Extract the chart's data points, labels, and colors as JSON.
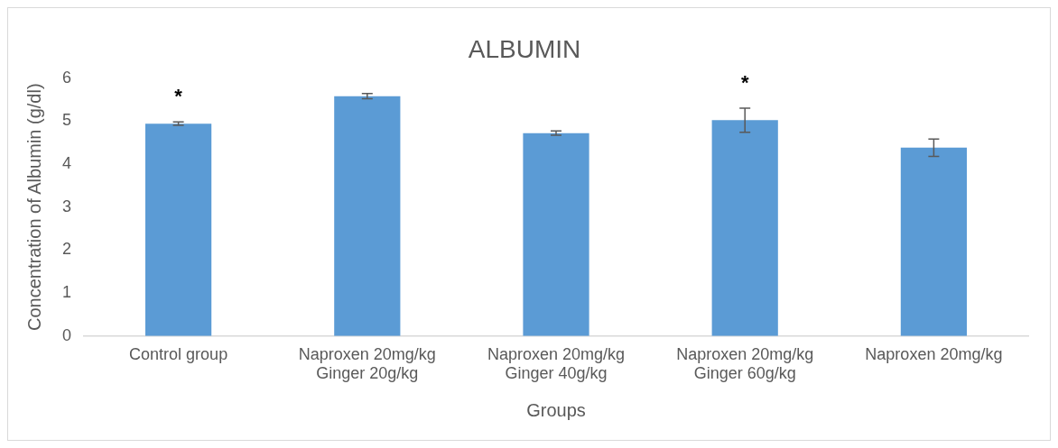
{
  "chart_data": {
    "type": "bar",
    "title": "ALBUMIN",
    "xlabel": "Groups",
    "ylabel": "Concentration of Albumin (g/dl)",
    "categories": [
      "Control group",
      "Naproxen 20mg/kg\nGinger 20g/kg",
      "Naproxen 20mg/kg\nGinger 40g/kg",
      "Naproxen 20mg/kg\nGinger 60g/kg",
      "Naproxen 20mg/kg"
    ],
    "values": [
      4.94,
      5.58,
      4.72,
      5.02,
      4.38
    ],
    "errors": [
      0.04,
      0.06,
      0.05,
      0.28,
      0.2
    ],
    "color": "#5b9bd5",
    "ylim": [
      0,
      6
    ],
    "yticks": [
      0,
      1,
      2,
      3,
      4,
      5,
      6
    ],
    "grid": false,
    "annotations": [
      "*",
      "*"
    ]
  }
}
